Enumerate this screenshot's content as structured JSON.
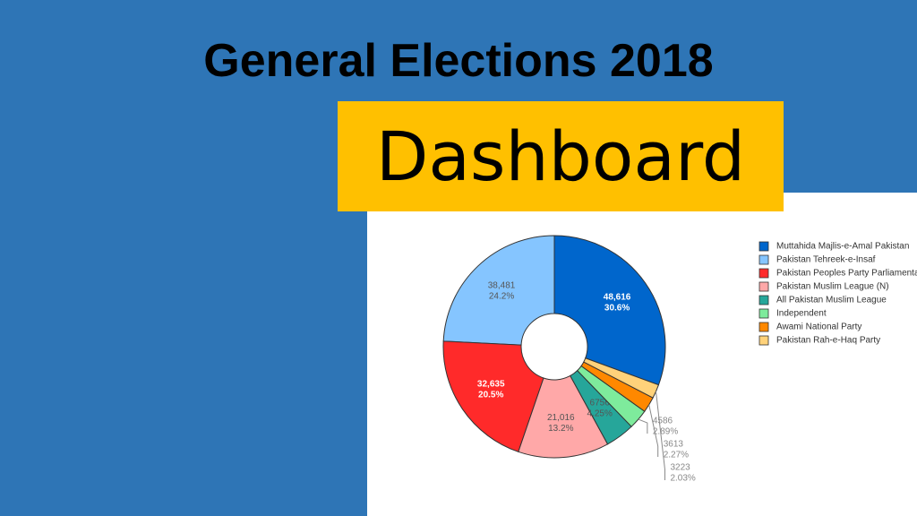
{
  "header": {
    "title": "General Elections 2018",
    "subtitle": "Dashboard"
  },
  "chart_data": {
    "type": "pie",
    "hole": true,
    "categories": [
      "Muttahida Majlis-e-Amal Pakistan",
      "Pakistan Tehreek-e-Insaf",
      "Pakistan Peoples Party Parliamentarians",
      "Pakistan Muslim League (N)",
      "All Pakistan Muslim League",
      "Independent",
      "Awami National Party",
      "Pakistan Rah-e-Haq Party"
    ],
    "values": [
      48616,
      38481,
      32635,
      21016,
      6756,
      4586,
      3613,
      3223
    ],
    "value_labels": [
      "48,616",
      "38,481",
      "32,635",
      "21,016",
      "6756",
      "4586",
      "3613",
      "3223"
    ],
    "percents": [
      {
        "value": 30.6,
        "label": "30.6%"
      },
      {
        "value": 24.2,
        "label": "24.2%"
      },
      {
        "value": 20.5,
        "label": "20.5%"
      },
      {
        "value": 13.2,
        "label": "13.2%"
      },
      {
        "value": 4.25,
        "label": "4.25%"
      },
      {
        "value": 2.89,
        "label": "2.89%"
      },
      {
        "value": 2.27,
        "label": "2.27%"
      },
      {
        "value": 2.03,
        "label": "2.03%"
      }
    ],
    "colors": [
      "#0066cc",
      "#85c5ff",
      "#ff2a2a",
      "#ffa8a8",
      "#26a69a",
      "#7eeb9c",
      "#ff8800",
      "#ffd27a"
    ],
    "legend": "top-right"
  }
}
